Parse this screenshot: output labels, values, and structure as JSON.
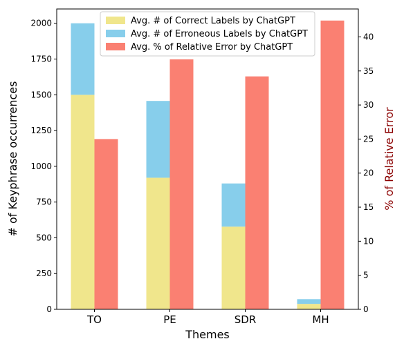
{
  "chart_data": {
    "type": "bar",
    "categories": [
      "TO",
      "PE",
      "SDR",
      "MH"
    ],
    "xlabel": "Themes",
    "ylabel": "# of Keyphrase occurrences",
    "y2label": "% of Relative Error",
    "ylim": [
      0,
      2100
    ],
    "y2lim": [
      0,
      44.1
    ],
    "yticks": [
      0,
      250,
      500,
      750,
      1000,
      1250,
      1500,
      1750,
      2000
    ],
    "y2ticks": [
      0,
      5,
      10,
      15,
      20,
      25,
      30,
      35,
      40
    ],
    "legend_position": "top-center",
    "grid": false,
    "series": [
      {
        "name": "Avg. # of Correct Labels by ChatGPT",
        "axis": "left",
        "stack": "counts",
        "color": "#f0e68c",
        "values": [
          1500,
          920,
          578,
          38
        ]
      },
      {
        "name": "Avg. # of Erroneous Labels by ChatGPT",
        "axis": "left",
        "stack": "counts",
        "color": "#87ceeb",
        "values": [
          500,
          537,
          302,
          33
        ]
      },
      {
        "name": "Avg. % of Relative Error by ChatGPT",
        "axis": "right",
        "stack": "error",
        "color": "#fa8072",
        "values": [
          25.0,
          36.7,
          34.2,
          42.4
        ]
      }
    ]
  }
}
